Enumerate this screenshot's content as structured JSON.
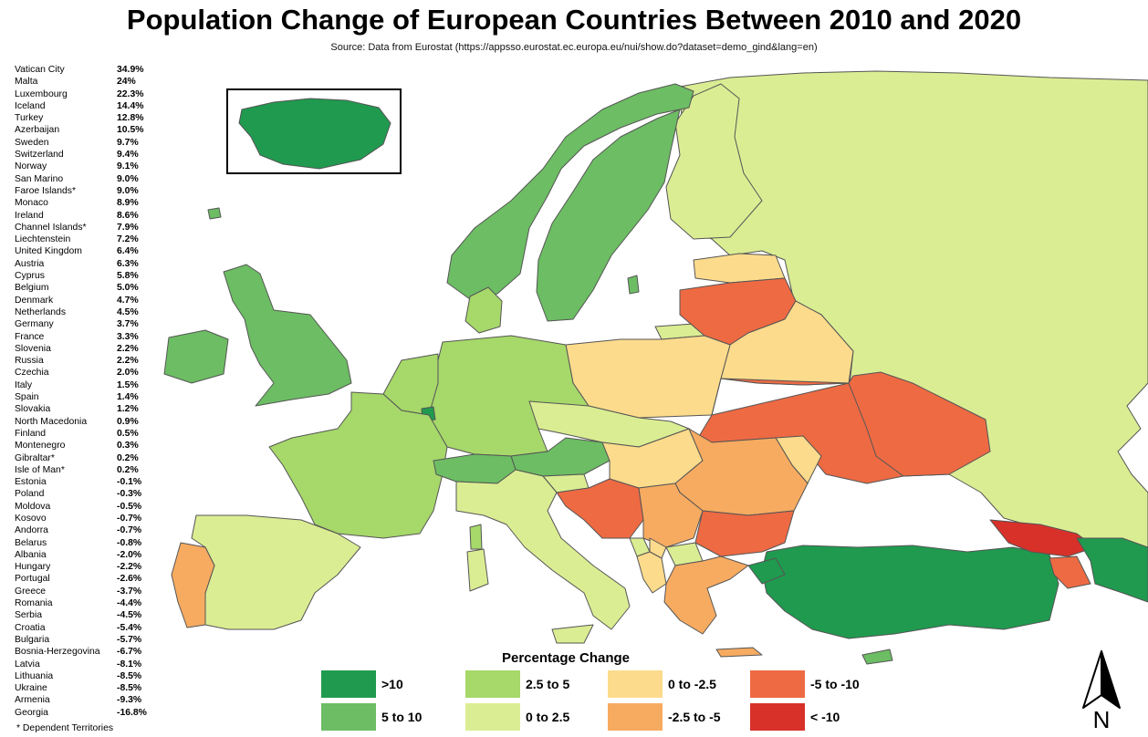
{
  "title": "Population Change of European Countries Between 2010 and 2020",
  "source": "Source: Data from Eurostat (https://appsso.eurostat.ec.europa.eu/nui/show.do?dataset=demo_gind&lang=en)",
  "footnote": "* Dependent Territories",
  "colors": {
    "gt10": "#1f9a4f",
    "5to10": "#6cbd63",
    "2_5to5": "#a6d86a",
    "0to2_5": "#dbed93",
    "neg0to2_5": "#fcdb8c",
    "neg2_5to5": "#f7ab61",
    "neg5to10": "#ee6a43",
    "ltneg10": "#d7312a",
    "sea": "#ffffff",
    "outside": "#ececec",
    "border": "#555555"
  },
  "legend": {
    "title": "Percentage Change",
    "items": [
      {
        "label": ">10",
        "color": "#1f9a4f"
      },
      {
        "label": "5 to 10",
        "color": "#6cbd63"
      },
      {
        "label": "2.5 to 5",
        "color": "#a6d86a"
      },
      {
        "label": "0 to 2.5",
        "color": "#dbed93"
      },
      {
        "label": "0 to -2.5",
        "color": "#fcdb8c"
      },
      {
        "label": "-2.5 to -5",
        "color": "#f7ab61"
      },
      {
        "label": "-5 to -10",
        "color": "#ee6a43"
      },
      {
        "label": "< -10",
        "color": "#d7312a"
      }
    ]
  },
  "compass": "N",
  "countries": [
    {
      "name": "Vatican City",
      "value": "34.9%"
    },
    {
      "name": "Malta",
      "value": "24%"
    },
    {
      "name": "Luxembourg",
      "value": "22.3%"
    },
    {
      "name": "Iceland",
      "value": "14.4%"
    },
    {
      "name": "Turkey",
      "value": "12.8%"
    },
    {
      "name": "Azerbaijan",
      "value": "10.5%"
    },
    {
      "name": "Sweden",
      "value": "9.7%"
    },
    {
      "name": "Switzerland",
      "value": "9.4%"
    },
    {
      "name": "Norway",
      "value": "9.1%"
    },
    {
      "name": "San Marino",
      "value": "9.0%"
    },
    {
      "name": "Faroe Islands*",
      "value": "9.0%"
    },
    {
      "name": "Monaco",
      "value": "8.9%"
    },
    {
      "name": "Ireland",
      "value": "8.6%"
    },
    {
      "name": "Channel Islands*",
      "value": "7.9%"
    },
    {
      "name": "Liechtenstein",
      "value": "7.2%"
    },
    {
      "name": "United Kingdom",
      "value": "6.4%"
    },
    {
      "name": "Austria",
      "value": "6.3%"
    },
    {
      "name": "Cyprus",
      "value": "5.8%"
    },
    {
      "name": "Belgium",
      "value": "5.0%"
    },
    {
      "name": "Denmark",
      "value": "4.7%"
    },
    {
      "name": "Netherlands",
      "value": "4.5%"
    },
    {
      "name": "Germany",
      "value": "3.7%"
    },
    {
      "name": "France",
      "value": "3.3%"
    },
    {
      "name": "Slovenia",
      "value": "2.2%"
    },
    {
      "name": "Russia",
      "value": "2.2%"
    },
    {
      "name": "Czechia",
      "value": "2.0%"
    },
    {
      "name": "Italy",
      "value": "1.5%"
    },
    {
      "name": "Spain",
      "value": "1.4%"
    },
    {
      "name": "Slovakia",
      "value": "1.2%"
    },
    {
      "name": "North Macedonia",
      "value": "0.9%"
    },
    {
      "name": "Finland",
      "value": "0.5%"
    },
    {
      "name": "Montenegro",
      "value": "0.3%"
    },
    {
      "name": "Gibraltar*",
      "value": "0.2%"
    },
    {
      "name": "Isle of Man*",
      "value": "0.2%"
    },
    {
      "name": "Estonia",
      "value": "-0.1%"
    },
    {
      "name": "Poland",
      "value": "-0.3%"
    },
    {
      "name": "Moldova",
      "value": "-0.5%"
    },
    {
      "name": "Kosovo",
      "value": "-0.7%"
    },
    {
      "name": "Andorra",
      "value": "-0.7%"
    },
    {
      "name": "Belarus",
      "value": "-0.8%"
    },
    {
      "name": "Albania",
      "value": "-2.0%"
    },
    {
      "name": "Hungary",
      "value": "-2.2%"
    },
    {
      "name": "Portugal",
      "value": "-2.6%"
    },
    {
      "name": "Greece",
      "value": "-3.7%"
    },
    {
      "name": "Romania",
      "value": "-4.4%"
    },
    {
      "name": "Serbia",
      "value": "-4.5%"
    },
    {
      "name": "Croatia",
      "value": "-5.4%"
    },
    {
      "name": "Bulgaria",
      "value": "-5.7%"
    },
    {
      "name": "Bosnia-Herzegovina",
      "value": "-6.7%"
    },
    {
      "name": "Latvia",
      "value": "-8.1%"
    },
    {
      "name": "Lithuania",
      "value": "-8.5%"
    },
    {
      "name": "Ukraine",
      "value": "-8.5%"
    },
    {
      "name": "Armenia",
      "value": "-9.3%"
    },
    {
      "name": "Georgia",
      "value": "-16.8%"
    }
  ]
}
